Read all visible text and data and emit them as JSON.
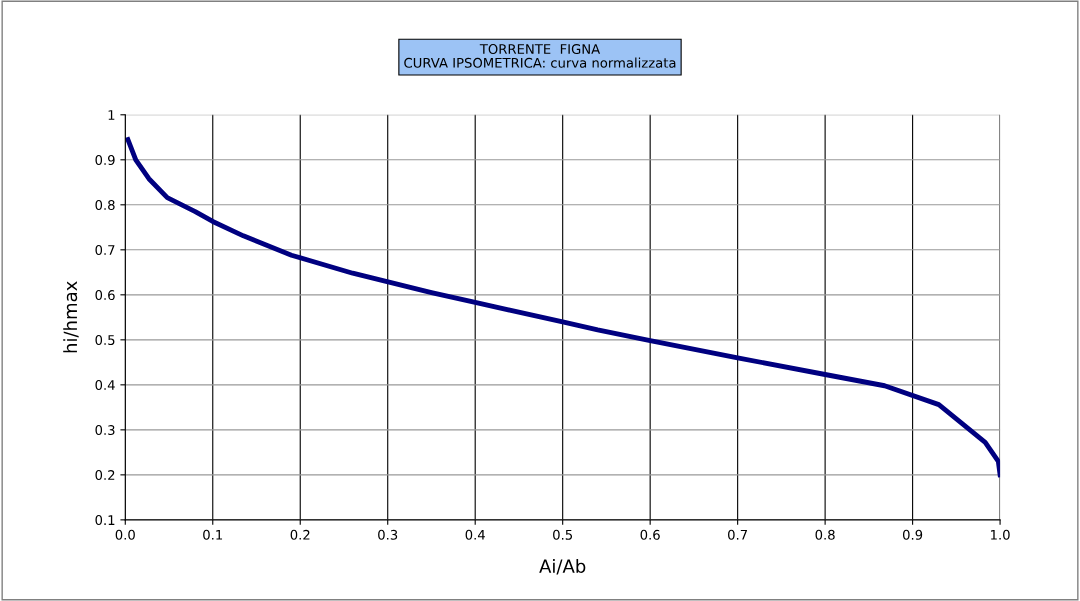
{
  "chart_data": {
    "type": "line",
    "title": "TORRENTE  FIGNA\nCURVA IPSOMETRICA: curva normalizzata",
    "xlabel": "Ai/Ab",
    "ylabel": "hi/hmax",
    "series": [
      {
        "color": "#000080",
        "x": [
          0.003,
          0.012,
          0.027,
          0.048,
          0.08,
          0.1,
          0.135,
          0.19,
          0.26,
          0.35,
          0.4,
          0.5,
          0.54,
          0.6,
          0.7,
          0.8,
          0.868,
          0.93,
          0.983,
          0.998,
          1.0
        ],
        "values": [
          0.945,
          0.9,
          0.858,
          0.816,
          0.785,
          0.763,
          0.731,
          0.688,
          0.648,
          0.605,
          0.583,
          0.54,
          0.522,
          0.498,
          0.46,
          0.423,
          0.398,
          0.356,
          0.272,
          0.23,
          0.2
        ]
      }
    ],
    "xlim": [
      0,
      1
    ],
    "ylim": [
      0.1,
      1
    ],
    "xticks": [
      {
        "value": 0,
        "label": "0.0"
      },
      0.1,
      0.2,
      0.3,
      0.4,
      0.5,
      0.6,
      0.7,
      0.8,
      0.9,
      {
        "value": 1,
        "label": "1.0"
      }
    ],
    "yticks": [
      0.1,
      0.2,
      0.3,
      0.4,
      0.5,
      0.6,
      0.7,
      0.8,
      0.9,
      1
    ],
    "grid": true,
    "legend": false,
    "marker": "none",
    "line_style": "solid"
  }
}
